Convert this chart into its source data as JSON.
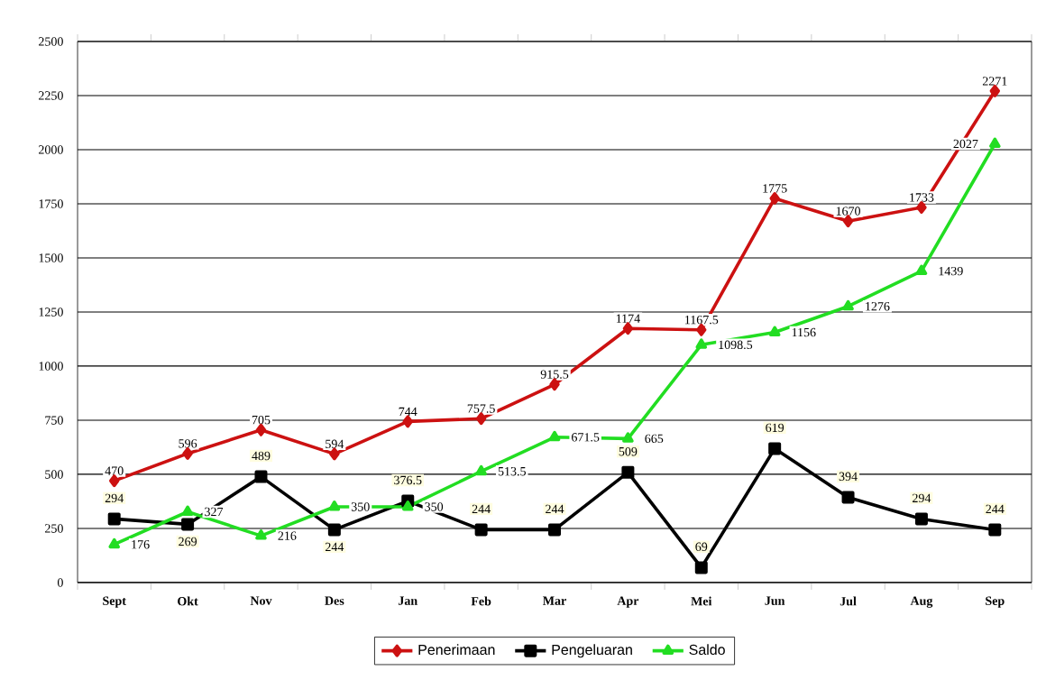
{
  "chart_data": {
    "type": "line",
    "categories": [
      "Sept",
      "Okt",
      "Nov",
      "Des",
      "Jan",
      "Feb",
      "Mar",
      "Apr",
      "Mei",
      "Jun",
      "Jul",
      "Aug",
      "Sep"
    ],
    "series": [
      {
        "name": "Penerimaan",
        "color": "#cc1111",
        "marker": "diamond",
        "values": [
          470,
          596,
          705,
          594,
          744,
          757.5,
          915.5,
          1174,
          1167.5,
          1775,
          1670,
          1733,
          2271
        ]
      },
      {
        "name": "Pengeluaran",
        "color": "#000000",
        "marker": "square",
        "values": [
          294,
          269,
          489,
          244,
          376.5,
          244,
          244,
          509,
          69,
          619,
          394,
          294,
          244
        ]
      },
      {
        "name": "Saldo",
        "color": "#22dd22",
        "marker": "triangle",
        "values": [
          176,
          327,
          216,
          350,
          350,
          513.5,
          671.5,
          665,
          1098.5,
          1156,
          1276,
          1439,
          2027
        ]
      }
    ],
    "ylim": [
      0,
      2500
    ],
    "yticks": [
      0,
      250,
      500,
      750,
      1000,
      1250,
      1500,
      1750,
      2000,
      2250,
      2500
    ],
    "grid": "y",
    "legend": "bottom",
    "data_labels": true
  }
}
